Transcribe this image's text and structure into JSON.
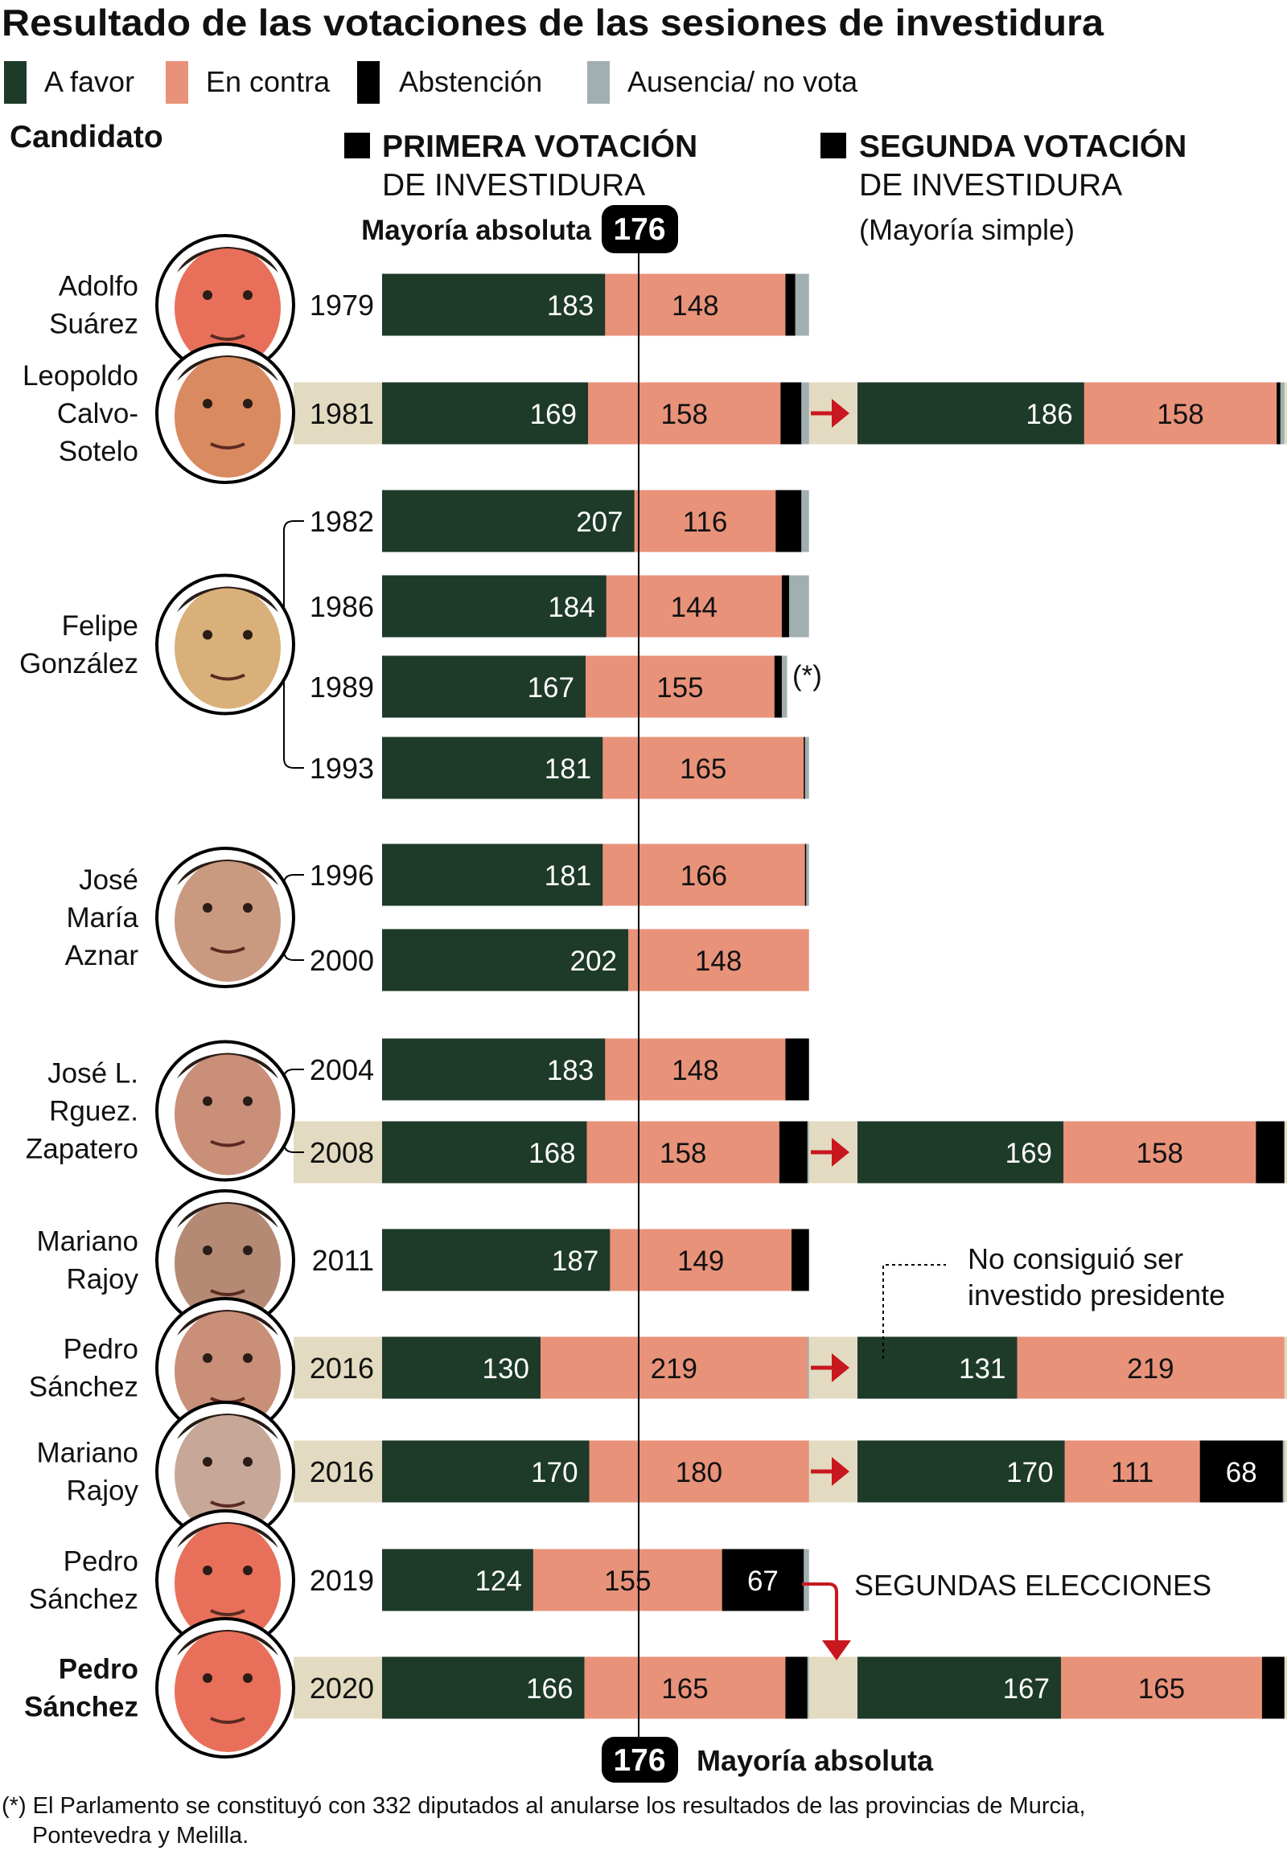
{
  "title": "Resultado de las votaciones de las sesiones de investidura",
  "legend": [
    {
      "label": "A favor",
      "color": "#1e3a29"
    },
    {
      "label": "En contra",
      "color": "#e8927a"
    },
    {
      "label": "Abstención",
      "color": "#000000"
    },
    {
      "label": "Ausencia/ no vota",
      "color": "#a2afb1"
    }
  ],
  "headers": {
    "candidato": "Candidato",
    "primera_1": "PRIMERA VOTACIÓN",
    "primera_2": "DE INVESTIDURA",
    "segunda_1": "SEGUNDA VOTACIÓN",
    "segunda_2": "DE INVESTIDURA",
    "segunda_3": "(Mayoría simple)",
    "mayoria_label": "Mayoría absoluta",
    "mayoria_value": "176"
  },
  "colors": {
    "highlight_band": "#e3dbc1",
    "arrow": "#c8171e"
  },
  "annotations": {
    "no_investido_1": "No consiguió ser",
    "no_investido_2": "investido presidente",
    "segundas_elecciones": "SEGUNDAS ELECCIONES",
    "footnote_1": "(*) El Parlamento se constituyó con 332 diputados al anularse los resultados de las provincias de Murcia,",
    "footnote_2": "Pontevedra y Melilla."
  },
  "candidates": [
    {
      "name": [
        "Adolfo",
        "Suárez"
      ],
      "rows": [
        0
      ],
      "bold": false,
      "photo": "red-toned"
    },
    {
      "name": [
        "Leopoldo",
        "Calvo-",
        "Sotelo"
      ],
      "rows": [
        1
      ],
      "bold": false,
      "photo": "glasses"
    },
    {
      "name": [
        "Felipe",
        "González"
      ],
      "rows": [
        2,
        3,
        4,
        5
      ],
      "bold": false,
      "photo": "smiling"
    },
    {
      "name": [
        "José",
        "María",
        "Aznar"
      ],
      "rows": [
        6,
        7
      ],
      "bold": false,
      "photo": "mustache"
    },
    {
      "name": [
        "José L.",
        "Rguez.",
        "Zapatero"
      ],
      "rows": [
        8,
        9
      ],
      "bold": false,
      "photo": "plain"
    },
    {
      "name": [
        "Mariano",
        "Rajoy"
      ],
      "rows": [
        10
      ],
      "bold": false,
      "photo": "beard"
    },
    {
      "name": [
        "Pedro",
        "Sánchez"
      ],
      "rows": [
        11
      ],
      "bold": false,
      "photo": "plain"
    },
    {
      "name": [
        "Mariano",
        "Rajoy"
      ],
      "rows": [
        12
      ],
      "bold": false,
      "photo": "beard-glasses"
    },
    {
      "name": [
        "Pedro",
        "Sánchez"
      ],
      "rows": [
        13
      ],
      "bold": false,
      "photo": "red-toned"
    },
    {
      "name": [
        "Pedro",
        "Sánchez"
      ],
      "rows": [
        14
      ],
      "bold": true,
      "photo": "red-toned"
    }
  ],
  "chart_data": {
    "type": "bar",
    "orientation": "horizontal-stacked",
    "total_seats": 350,
    "reference_line": {
      "value": 176,
      "label": "Mayoría absoluta"
    },
    "series_names": [
      "A favor",
      "En contra",
      "Abstención",
      "Ausencia/ no vota"
    ],
    "rows": [
      {
        "year": "1979",
        "first": [
          183,
          148,
          8,
          11
        ],
        "second": null,
        "note": ""
      },
      {
        "year": "1981",
        "first": [
          169,
          158,
          17,
          6
        ],
        "second": [
          186,
          158,
          3,
          3
        ],
        "note": ""
      },
      {
        "year": "1982",
        "first": [
          207,
          116,
          21,
          6
        ],
        "second": null,
        "note": ""
      },
      {
        "year": "1986",
        "first": [
          184,
          144,
          6,
          16
        ],
        "second": null,
        "note": ""
      },
      {
        "year": "1989",
        "first": [
          167,
          155,
          6,
          4
        ],
        "second": null,
        "note": "(*)"
      },
      {
        "year": "1993",
        "first": [
          181,
          165,
          1,
          3
        ],
        "second": null,
        "note": ""
      },
      {
        "year": "1996",
        "first": [
          181,
          166,
          1,
          2
        ],
        "second": null,
        "note": ""
      },
      {
        "year": "2000",
        "first": [
          202,
          148,
          0,
          0
        ],
        "second": null,
        "note": ""
      },
      {
        "year": "2004",
        "first": [
          183,
          148,
          19,
          0
        ],
        "second": null,
        "note": ""
      },
      {
        "year": "2008",
        "first": [
          168,
          158,
          23,
          1
        ],
        "second": [
          169,
          158,
          23,
          0
        ],
        "note": ""
      },
      {
        "year": "2011",
        "first": [
          187,
          149,
          14,
          0
        ],
        "second": null,
        "note": ""
      },
      {
        "year": "2016",
        "first": [
          130,
          219,
          0,
          1
        ],
        "second": [
          131,
          219,
          0,
          0
        ],
        "note": ""
      },
      {
        "year": "2016",
        "first": [
          170,
          180,
          0,
          0
        ],
        "second": [
          170,
          111,
          68,
          1
        ],
        "note": ""
      },
      {
        "year": "2019",
        "first": [
          124,
          155,
          67,
          4
        ],
        "second": null,
        "note": ""
      },
      {
        "year": "2020",
        "first": [
          166,
          165,
          18,
          1
        ],
        "second": [
          167,
          165,
          18,
          0
        ],
        "note": ""
      }
    ]
  }
}
